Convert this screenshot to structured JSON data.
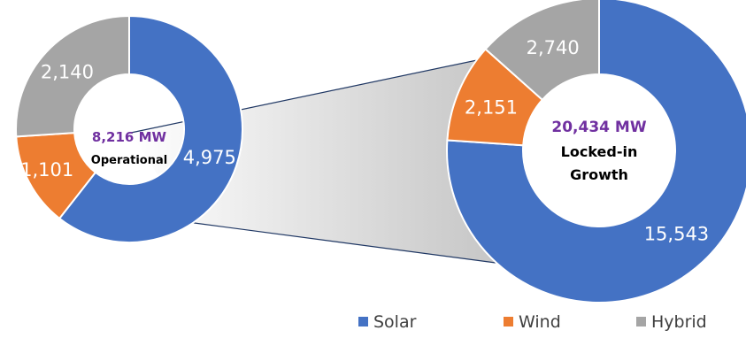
{
  "colors": {
    "solar": "#4472c4",
    "wind": "#ed7d31",
    "hybrid": "#a5a5a5",
    "accent": "#7030a0"
  },
  "chart_data": [
    {
      "type": "pie",
      "donut": true,
      "categories": [
        "Solar",
        "Wind",
        "Hybrid"
      ],
      "values": [
        4975,
        1101,
        2140
      ],
      "value_labels": [
        "4,975",
        "1,101",
        "2,140"
      ],
      "center_total": "8,216 MW",
      "center_subtitle": "Operational"
    },
    {
      "type": "pie",
      "donut": true,
      "categories": [
        "Solar",
        "Wind",
        "Hybrid"
      ],
      "values": [
        15543,
        2151,
        2740
      ],
      "value_labels": [
        "15,543",
        "2,151",
        "2,740"
      ],
      "center_total": "20,434 MW",
      "center_subtitle_lines": [
        "Locked-in",
        "Growth"
      ]
    }
  ],
  "legend": {
    "position": "bottom-right",
    "items": [
      {
        "label": "Solar",
        "color": "#4472c4"
      },
      {
        "label": "Wind",
        "color": "#ed7d31"
      },
      {
        "label": "Hybrid",
        "color": "#a5a5a5"
      }
    ]
  }
}
